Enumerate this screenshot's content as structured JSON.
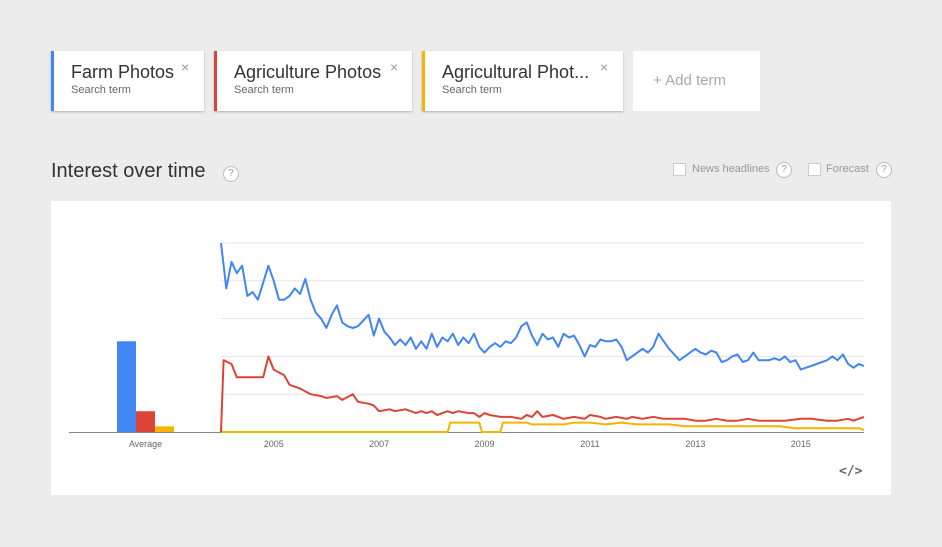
{
  "terms": [
    {
      "name": "Farm Photos",
      "subtitle": "Search term",
      "color": "#4285f4"
    },
    {
      "name": "Agriculture Photos",
      "subtitle": "Search term",
      "color": "#db4437"
    },
    {
      "name": "Agricultural Phot...",
      "subtitle": "Search term",
      "color": "#f4b400"
    }
  ],
  "add_term": "+ Add term",
  "section": {
    "title": "Interest over time",
    "help": "?",
    "news_headlines": "News headlines",
    "forecast": "Forecast",
    "embed": "</>"
  },
  "chart_data": {
    "type": "line",
    "average_label": "Average",
    "averages": [
      {
        "name": "Farm Photos",
        "value": 48
      },
      {
        "name": "Agriculture Photos",
        "value": 11
      },
      {
        "name": "Agricultural Phot...",
        "value": 3
      }
    ],
    "x_ticks": [
      "2005",
      "2007",
      "2009",
      "2011",
      "2013",
      "2015"
    ],
    "xlim": [
      2004.0,
      2016.2
    ],
    "ylim": [
      0,
      100
    ],
    "grid": true,
    "series": [
      {
        "name": "Farm Photos",
        "color": "#4285f4",
        "points": [
          [
            2004.0,
            100
          ],
          [
            2004.1,
            76
          ],
          [
            2004.2,
            90
          ],
          [
            2004.3,
            84
          ],
          [
            2004.4,
            88
          ],
          [
            2004.5,
            72
          ],
          [
            2004.6,
            74
          ],
          [
            2004.7,
            70
          ],
          [
            2004.9,
            88
          ],
          [
            2005.0,
            80
          ],
          [
            2005.1,
            70
          ],
          [
            2005.2,
            70
          ],
          [
            2005.3,
            72
          ],
          [
            2005.4,
            76
          ],
          [
            2005.5,
            73
          ],
          [
            2005.6,
            81
          ],
          [
            2005.7,
            70
          ],
          [
            2005.8,
            63
          ],
          [
            2005.9,
            60
          ],
          [
            2006.0,
            55
          ],
          [
            2006.1,
            62
          ],
          [
            2006.2,
            67
          ],
          [
            2006.3,
            58
          ],
          [
            2006.4,
            56
          ],
          [
            2006.5,
            55
          ],
          [
            2006.6,
            56
          ],
          [
            2006.8,
            62
          ],
          [
            2006.9,
            51
          ],
          [
            2007.0,
            60
          ],
          [
            2007.1,
            53
          ],
          [
            2007.2,
            50
          ],
          [
            2007.3,
            46
          ],
          [
            2007.4,
            49
          ],
          [
            2007.5,
            46
          ],
          [
            2007.6,
            50
          ],
          [
            2007.7,
            44
          ],
          [
            2007.8,
            48
          ],
          [
            2007.9,
            44
          ],
          [
            2008.0,
            52
          ],
          [
            2008.1,
            45
          ],
          [
            2008.2,
            50
          ],
          [
            2008.3,
            48
          ],
          [
            2008.4,
            52
          ],
          [
            2008.5,
            46
          ],
          [
            2008.6,
            50
          ],
          [
            2008.7,
            47
          ],
          [
            2008.8,
            52
          ],
          [
            2008.9,
            45
          ],
          [
            2009.0,
            42
          ],
          [
            2009.1,
            45
          ],
          [
            2009.2,
            47
          ],
          [
            2009.3,
            45
          ],
          [
            2009.4,
            48
          ],
          [
            2009.5,
            47
          ],
          [
            2009.6,
            50
          ],
          [
            2009.7,
            56
          ],
          [
            2009.8,
            58
          ],
          [
            2009.9,
            51
          ],
          [
            2010.0,
            46
          ],
          [
            2010.1,
            52
          ],
          [
            2010.2,
            49
          ],
          [
            2010.3,
            50
          ],
          [
            2010.4,
            45
          ],
          [
            2010.5,
            52
          ],
          [
            2010.6,
            50
          ],
          [
            2010.7,
            51
          ],
          [
            2010.8,
            46
          ],
          [
            2010.9,
            40
          ],
          [
            2011.0,
            46
          ],
          [
            2011.1,
            45
          ],
          [
            2011.2,
            49
          ],
          [
            2011.3,
            48
          ],
          [
            2011.4,
            48
          ],
          [
            2011.5,
            49
          ],
          [
            2011.6,
            45
          ],
          [
            2011.7,
            38
          ],
          [
            2011.8,
            40
          ],
          [
            2011.9,
            42
          ],
          [
            2012.0,
            44
          ],
          [
            2012.1,
            42
          ],
          [
            2012.2,
            45
          ],
          [
            2012.3,
            52
          ],
          [
            2012.4,
            48
          ],
          [
            2012.5,
            44
          ],
          [
            2012.6,
            41
          ],
          [
            2012.7,
            38
          ],
          [
            2012.8,
            40
          ],
          [
            2012.9,
            42
          ],
          [
            2013.0,
            44
          ],
          [
            2013.1,
            42
          ],
          [
            2013.2,
            41
          ],
          [
            2013.3,
            43
          ],
          [
            2013.4,
            42
          ],
          [
            2013.5,
            37
          ],
          [
            2013.6,
            38
          ],
          [
            2013.7,
            40
          ],
          [
            2013.8,
            41
          ],
          [
            2013.9,
            37
          ],
          [
            2014.0,
            38
          ],
          [
            2014.1,
            42
          ],
          [
            2014.2,
            38
          ],
          [
            2014.3,
            38
          ],
          [
            2014.4,
            38
          ],
          [
            2014.5,
            39
          ],
          [
            2014.6,
            38
          ],
          [
            2014.7,
            40
          ],
          [
            2014.8,
            37
          ],
          [
            2014.9,
            38
          ],
          [
            2015.0,
            33
          ],
          [
            2015.1,
            34
          ],
          [
            2015.2,
            35
          ],
          [
            2015.3,
            36
          ],
          [
            2015.5,
            38
          ],
          [
            2015.6,
            40
          ],
          [
            2015.7,
            38
          ],
          [
            2015.8,
            41
          ],
          [
            2015.9,
            36
          ],
          [
            2016.0,
            34
          ],
          [
            2016.1,
            36
          ],
          [
            2016.2,
            35
          ]
        ]
      },
      {
        "name": "Agriculture Photos",
        "color": "#db4437",
        "points": [
          [
            2004.0,
            0
          ],
          [
            2004.05,
            38
          ],
          [
            2004.2,
            36
          ],
          [
            2004.3,
            29
          ],
          [
            2004.8,
            29
          ],
          [
            2004.9,
            40
          ],
          [
            2005.0,
            33
          ],
          [
            2005.2,
            30
          ],
          [
            2005.3,
            25
          ],
          [
            2005.5,
            23
          ],
          [
            2005.7,
            20
          ],
          [
            2005.9,
            19
          ],
          [
            2006.0,
            18
          ],
          [
            2006.2,
            19
          ],
          [
            2006.3,
            17
          ],
          [
            2006.5,
            20
          ],
          [
            2006.6,
            16
          ],
          [
            2006.8,
            15
          ],
          [
            2006.9,
            14
          ],
          [
            2007.0,
            11
          ],
          [
            2007.2,
            12
          ],
          [
            2007.3,
            11
          ],
          [
            2007.5,
            12
          ],
          [
            2007.7,
            10
          ],
          [
            2007.8,
            11
          ],
          [
            2007.9,
            10
          ],
          [
            2008.0,
            11
          ],
          [
            2008.1,
            9
          ],
          [
            2008.3,
            11
          ],
          [
            2008.4,
            10
          ],
          [
            2008.5,
            11
          ],
          [
            2008.7,
            10
          ],
          [
            2008.8,
            10
          ],
          [
            2008.9,
            8
          ],
          [
            2009.0,
            10
          ],
          [
            2009.1,
            9
          ],
          [
            2009.3,
            8
          ],
          [
            2009.5,
            8
          ],
          [
            2009.7,
            7
          ],
          [
            2009.8,
            9
          ],
          [
            2009.9,
            8
          ],
          [
            2010.0,
            11
          ],
          [
            2010.1,
            8
          ],
          [
            2010.3,
            9
          ],
          [
            2010.5,
            7
          ],
          [
            2010.7,
            8
          ],
          [
            2010.9,
            7
          ],
          [
            2011.0,
            9
          ],
          [
            2011.2,
            8
          ],
          [
            2011.3,
            7
          ],
          [
            2011.5,
            8
          ],
          [
            2011.7,
            7
          ],
          [
            2011.8,
            8
          ],
          [
            2012.0,
            7
          ],
          [
            2012.2,
            8
          ],
          [
            2012.4,
            7
          ],
          [
            2012.6,
            7
          ],
          [
            2012.8,
            7
          ],
          [
            2013.0,
            6
          ],
          [
            2013.2,
            6
          ],
          [
            2013.4,
            7
          ],
          [
            2013.6,
            6
          ],
          [
            2013.8,
            6
          ],
          [
            2014.0,
            7
          ],
          [
            2014.2,
            6
          ],
          [
            2014.5,
            6
          ],
          [
            2014.7,
            6
          ],
          [
            2015.0,
            7
          ],
          [
            2015.2,
            7
          ],
          [
            2015.5,
            6
          ],
          [
            2015.7,
            6
          ],
          [
            2015.9,
            7
          ],
          [
            2016.0,
            6
          ],
          [
            2016.1,
            7
          ],
          [
            2016.2,
            8
          ]
        ]
      },
      {
        "name": "Agricultural Phot...",
        "color": "#f4b400",
        "points": [
          [
            2004.0,
            0
          ],
          [
            2008.3,
            0
          ],
          [
            2008.35,
            5
          ],
          [
            2008.9,
            5
          ],
          [
            2008.95,
            0
          ],
          [
            2009.3,
            0
          ],
          [
            2009.35,
            5
          ],
          [
            2009.7,
            5
          ],
          [
            2009.8,
            5
          ],
          [
            2009.9,
            4
          ],
          [
            2010.0,
            4
          ],
          [
            2010.3,
            4
          ],
          [
            2010.5,
            4
          ],
          [
            2010.7,
            5
          ],
          [
            2011.0,
            5
          ],
          [
            2011.3,
            4
          ],
          [
            2011.6,
            5
          ],
          [
            2011.9,
            4
          ],
          [
            2012.2,
            4
          ],
          [
            2012.5,
            4
          ],
          [
            2012.8,
            3
          ],
          [
            2013.1,
            3
          ],
          [
            2013.4,
            3
          ],
          [
            2013.7,
            3
          ],
          [
            2014.0,
            3
          ],
          [
            2014.3,
            3
          ],
          [
            2014.6,
            3
          ],
          [
            2014.9,
            2
          ],
          [
            2015.2,
            2
          ],
          [
            2015.5,
            2
          ],
          [
            2015.8,
            2
          ],
          [
            2016.1,
            2
          ],
          [
            2016.2,
            1
          ]
        ]
      }
    ]
  }
}
